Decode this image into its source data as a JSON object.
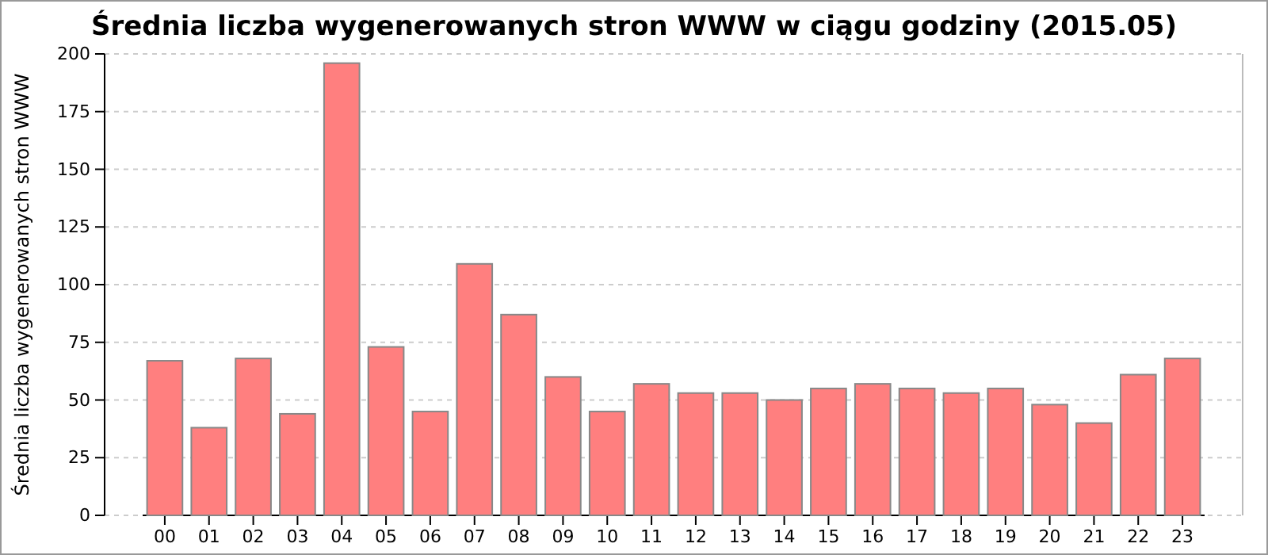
{
  "chart_data": {
    "type": "bar",
    "title": "Średnia liczba wygenerowanych stron WWW w ciągu godziny (2015.05)",
    "ylabel": "Średnia liczba wygenerowanych stron WWW",
    "categories": [
      "00",
      "01",
      "02",
      "03",
      "04",
      "05",
      "06",
      "07",
      "08",
      "09",
      "10",
      "11",
      "12",
      "13",
      "14",
      "15",
      "16",
      "17",
      "18",
      "19",
      "20",
      "21",
      "22",
      "23"
    ],
    "values": [
      67,
      38,
      68,
      44,
      196,
      73,
      45,
      109,
      87,
      60,
      45,
      57,
      53,
      53,
      50,
      55,
      57,
      55,
      53,
      55,
      48,
      40,
      61,
      68
    ],
    "color": "#ff7f7f",
    "ylim": [
      0,
      200
    ],
    "yticks": [
      0,
      25,
      50,
      75,
      100,
      125,
      150,
      175,
      200
    ],
    "grid": "y"
  }
}
